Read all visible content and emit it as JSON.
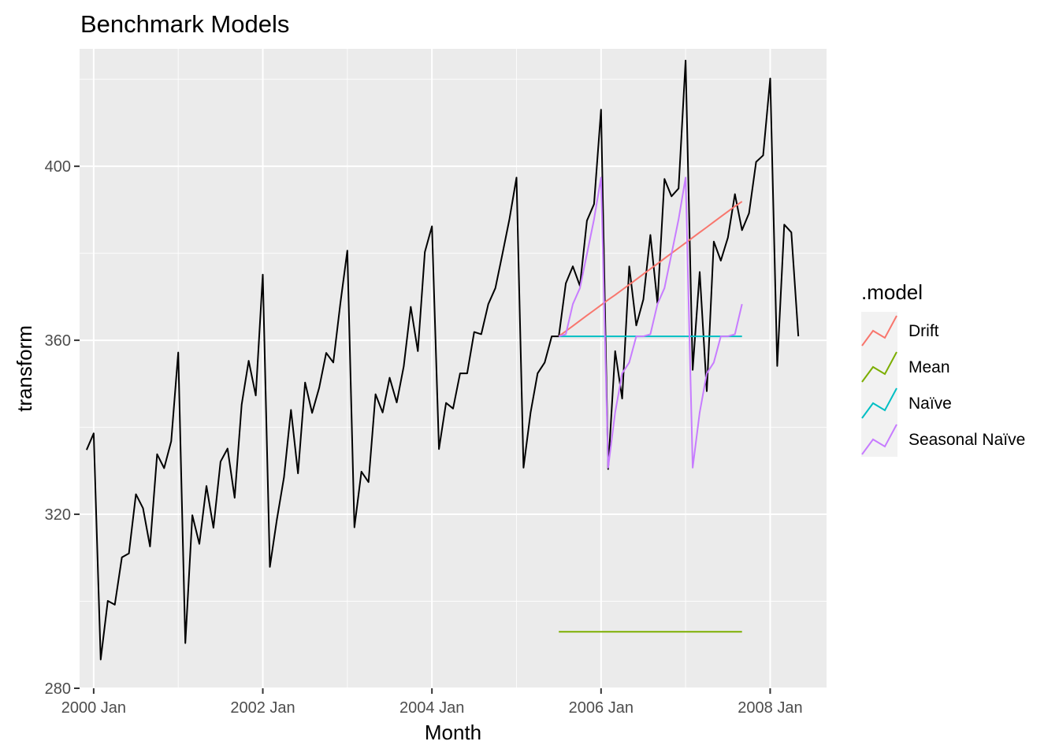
{
  "chart_data": {
    "type": "line",
    "title": "Benchmark Models",
    "xlabel": "Month",
    "ylabel": "transform",
    "x_ticks": [
      {
        "label": "2000 Jan",
        "month": 0
      },
      {
        "label": "2002 Jan",
        "month": 24
      },
      {
        "label": "2004 Jan",
        "month": 48
      },
      {
        "label": "2006 Jan",
        "month": 72
      },
      {
        "label": "2008 Jan",
        "month": 96
      }
    ],
    "y_ticks": [
      280,
      320,
      360,
      400
    ],
    "xlim": [
      "1999 Nov",
      "2008 Sep"
    ],
    "ylim": [
      280,
      427
    ],
    "grid": true,
    "background": "#ebebeb",
    "legend": {
      "title": ".model",
      "position": "right"
    },
    "history": {
      "name": "",
      "color": "#000000",
      "start": "1999 Dec",
      "values": [
        334.8,
        338.6,
        286.6,
        300.1,
        299.2,
        310.1,
        311.0,
        324.6,
        321.4,
        312.6,
        333.8,
        330.6,
        336.8,
        357.2,
        290.4,
        319.8,
        313.2,
        326.5,
        316.9,
        332.1,
        335.1,
        323.8,
        345.2,
        355.3,
        347.3,
        375.1,
        307.9,
        318.8,
        328.5,
        344.0,
        329.4,
        350.3,
        343.3,
        349.1,
        357.1,
        354.9,
        368.4,
        380.6,
        317.0,
        329.8,
        327.4,
        347.6,
        343.4,
        351.4,
        345.7,
        354.0,
        367.7,
        357.5,
        380.3,
        386.2,
        335.0,
        345.6,
        344.3,
        352.4,
        352.4,
        361.9,
        361.4,
        368.3,
        372.0,
        379.8,
        387.8,
        397.4,
        330.7,
        343.4,
        352.4,
        354.9,
        360.9,
        360.9,
        373.1,
        377.0,
        372.5,
        387.5,
        391.3,
        413.0,
        330.4,
        357.5,
        346.6,
        377.0,
        363.4,
        369.4,
        384.2,
        368.5,
        397.1,
        393.1,
        394.9,
        424.3,
        353.2,
        375.7,
        348.3,
        382.7,
        378.3,
        383.6,
        393.6,
        385.3,
        389.2,
        401.0,
        402.5,
        420.2,
        354.1,
        386.6,
        384.8,
        360.9
      ]
    },
    "series": [
      {
        "name": "Drift",
        "color": "#f8766d",
        "start": "2005 Jul",
        "values": [
          360.9,
          362.1,
          363.3,
          364.5,
          365.7,
          366.9,
          368.1,
          369.3,
          370.4,
          371.6,
          372.8,
          374.0,
          375.2,
          376.4,
          377.6,
          378.8,
          380.0,
          381.2,
          382.4,
          383.6,
          384.8,
          386.0,
          387.2,
          388.4,
          389.6,
          390.8,
          391.9
        ]
      },
      {
        "name": "Mean",
        "color": "#7cae00",
        "start": "2005 Jul",
        "values": [
          293.0,
          293.0,
          293.0,
          293.0,
          293.0,
          293.0,
          293.0,
          293.0,
          293.0,
          293.0,
          293.0,
          293.0,
          293.0,
          293.0,
          293.0,
          293.0,
          293.0,
          293.0,
          293.0,
          293.0,
          293.0,
          293.0,
          293.0,
          293.0,
          293.0,
          293.0,
          293.0
        ]
      },
      {
        "name": "Naïve",
        "color": "#00bfc4",
        "start": "2005 Jul",
        "values": [
          360.9,
          360.9,
          360.9,
          360.9,
          360.9,
          360.9,
          360.9,
          360.9,
          360.9,
          360.9,
          360.9,
          360.9,
          360.9,
          360.9,
          360.9,
          360.9,
          360.9,
          360.9,
          360.9,
          360.9,
          360.9,
          360.9,
          360.9,
          360.9,
          360.9,
          360.9,
          360.9
        ]
      },
      {
        "name": "Seasonal Naïve",
        "color": "#c77cff",
        "start": "2005 Jul",
        "values": [
          360.9,
          361.4,
          368.3,
          372.0,
          379.8,
          387.8,
          397.4,
          330.7,
          343.4,
          352.4,
          354.9,
          360.9,
          360.9,
          361.4,
          368.3,
          372.0,
          379.8,
          387.8,
          397.4,
          330.7,
          343.4,
          352.4,
          354.9,
          360.9,
          360.9,
          361.4,
          368.3
        ]
      }
    ]
  }
}
